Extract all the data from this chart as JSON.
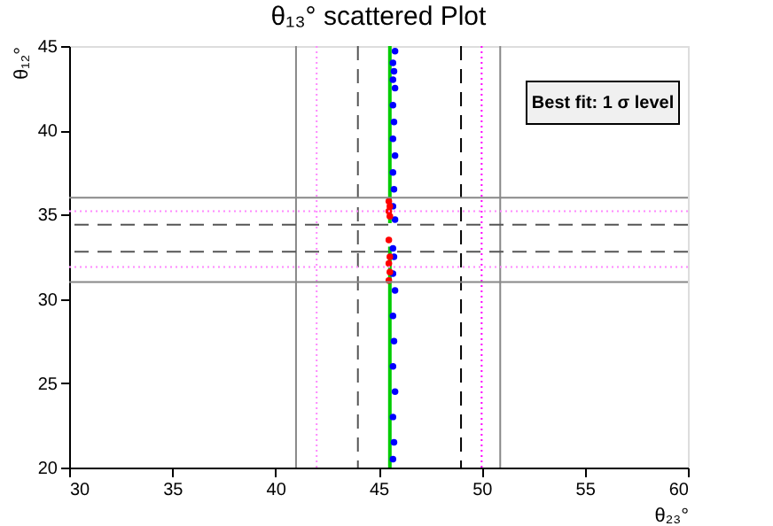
{
  "chart_data": {
    "type": "scatter",
    "title": "θ₁₃° scattered Plot",
    "xlabel": "θ₂₃°",
    "ylabel": "θ₁₂°",
    "xlim": [
      30,
      60
    ],
    "ylim": [
      20,
      45
    ],
    "xticks": [
      30,
      35,
      40,
      45,
      50,
      55,
      60
    ],
    "yticks": [
      20,
      25,
      30,
      35,
      40,
      45
    ],
    "grid": false,
    "marker": "circle",
    "series": [
      {
        "type": "line",
        "marker": "none",
        "color": "#00cc00",
        "x": [
          45.55,
          45.55
        ],
        "values": [
          20,
          33.1
        ]
      },
      {
        "type": "line",
        "marker": "none",
        "color": "#00cc00",
        "x": [
          45.55,
          45.55
        ],
        "values": [
          34.5,
          45
        ]
      },
      {
        "type": "scatter",
        "color": "#0000ff",
        "x": [
          45.7,
          45.75,
          45.7,
          45.8,
          45.7,
          45.75,
          45.7,
          45.8,
          45.7,
          45.75,
          45.7,
          45.8,
          45.7,
          45.75,
          45.7,
          45.8,
          45.7,
          45.75,
          45.7,
          45.8,
          45.7,
          45.75,
          45.7,
          45.8
        ],
        "values": [
          20.5,
          21.5,
          23,
          24.5,
          26,
          27.5,
          29,
          30.5,
          31.5,
          32.5,
          33,
          34.7,
          35.5,
          36.5,
          37.5,
          38.5,
          39.5,
          40.5,
          41.5,
          42.5,
          43,
          43.5,
          44,
          44.7
        ]
      },
      {
        "type": "scatter",
        "color": "#ff0000",
        "x": [
          45.5,
          45.55,
          45.5,
          45.55,
          45.5,
          45.55,
          45.5,
          45.55,
          45.5
        ],
        "values": [
          31.1,
          31.6,
          32.1,
          32.5,
          33.5,
          34.9,
          35.2,
          35.5,
          35.8
        ]
      }
    ],
    "ref_lines": [
      {
        "axis": "x",
        "value": 41,
        "color": "#888888",
        "line_style": "solid"
      },
      {
        "axis": "x",
        "value": 42,
        "color": "#ff88ff",
        "line_style": "dotted"
      },
      {
        "axis": "x",
        "value": 44,
        "color": "#555555",
        "line_style": "dashed"
      },
      {
        "axis": "x",
        "value": 49,
        "color": "#000000",
        "line_style": "dashed"
      },
      {
        "axis": "x",
        "value": 50,
        "color": "#ff00ff",
        "line_style": "dotted"
      },
      {
        "axis": "x",
        "value": 50.9,
        "color": "#888888",
        "line_style": "solid"
      },
      {
        "axis": "y",
        "value": 36,
        "color": "#888888",
        "line_style": "solid"
      },
      {
        "axis": "y",
        "value": 35.2,
        "color": "#ff88ff",
        "line_style": "dotted"
      },
      {
        "axis": "y",
        "value": 34.4,
        "color": "#555555",
        "line_style": "dashed"
      },
      {
        "axis": "y",
        "value": 32.8,
        "color": "#555555",
        "line_style": "dashed"
      },
      {
        "axis": "y",
        "value": 31.9,
        "color": "#ff88ff",
        "line_style": "dotted"
      },
      {
        "axis": "y",
        "value": 31,
        "color": "#888888",
        "line_style": "solid"
      }
    ],
    "annotations": [
      "Best fit: 1 σ level"
    ]
  }
}
